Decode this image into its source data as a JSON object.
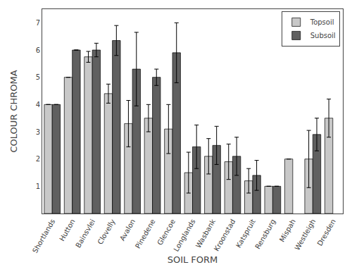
{
  "chart_data": {
    "type": "bar",
    "xlabel": "SOIL FORM",
    "ylabel": "COLOUR CHROMA",
    "categories": [
      "Shortlands",
      "Hutton",
      "Bainsvlei",
      "Clovelly",
      "Avalon",
      "Pinedene",
      "Glencoe",
      "Longlands",
      "Wasbank",
      "Kroonstad",
      "Katspruit",
      "Rensburg",
      "Mispah",
      "Westleigh",
      "Dresden"
    ],
    "series": [
      {
        "name": "Topsoil",
        "color": "#c8c8c8",
        "values": [
          4.0,
          5.0,
          5.75,
          4.4,
          3.3,
          3.5,
          3.1,
          1.5,
          2.1,
          1.9,
          1.2,
          1.0,
          2.0,
          2.0,
          3.5
        ],
        "errors": [
          0.0,
          0.0,
          0.2,
          0.35,
          0.85,
          0.5,
          0.9,
          0.75,
          0.65,
          0.65,
          0.45,
          0.0,
          0.0,
          1.05,
          0.7
        ]
      },
      {
        "name": "Subsoil",
        "color": "#606060",
        "values": [
          4.0,
          6.0,
          6.0,
          6.35,
          5.3,
          5.0,
          5.9,
          2.45,
          2.5,
          2.1,
          1.4,
          1.0,
          null,
          2.9,
          null
        ],
        "errors": [
          0.0,
          0.0,
          0.25,
          0.55,
          1.35,
          0.3,
          1.1,
          0.8,
          0.7,
          0.7,
          0.55,
          0.0,
          null,
          0.6,
          null
        ]
      }
    ],
    "ylim": [
      0,
      7.5
    ],
    "yticks": [
      1,
      2,
      3,
      4,
      5,
      6,
      7
    ],
    "grid": false,
    "legend": "upper right"
  }
}
